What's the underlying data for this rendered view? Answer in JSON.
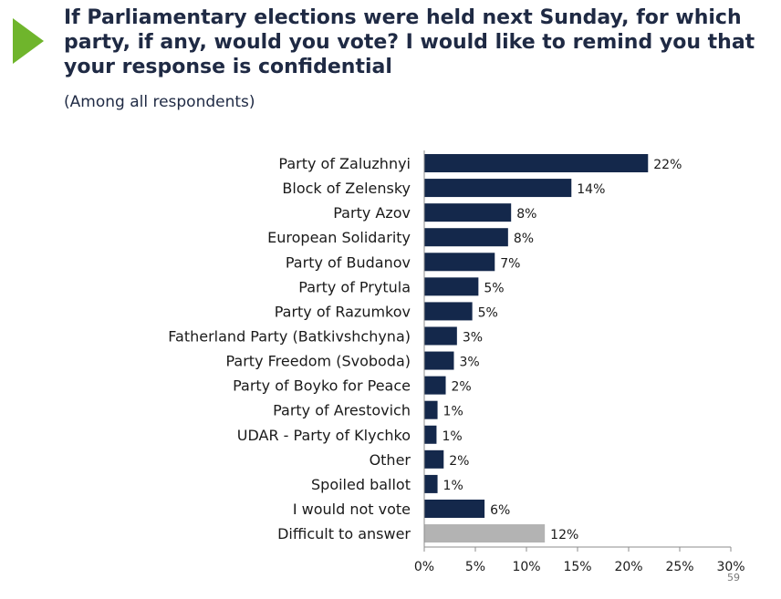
{
  "header": {
    "title": "If Parliamentary elections were held next Sunday, for which party, if any, would you vote? I would like to remind you that your response is confidential",
    "subtitle": "(Among all respondents)"
  },
  "page_number": "59",
  "colors": {
    "bar": "#14284b",
    "bar_highlight": "#b3b3b3",
    "accent_arrow": "#6fb52c"
  },
  "chart_data": {
    "type": "bar",
    "orientation": "horizontal",
    "title": "If Parliamentary elections were held next Sunday, for which party, if any, would you vote? I would like to remind you that your response is confidential",
    "subtitle": "(Among all respondents)",
    "categories": [
      "Party of Zaluzhnyi",
      "Block of Zelensky",
      "Party Azov",
      "European Solidarity",
      "Party of Budanov",
      "Party of Prytula",
      "Party of Razumkov",
      "Fatherland Party (Batkivshchyna)",
      "Party Freedom (Svoboda)",
      "Party of Boyko for Peace",
      "Party of Arestovich",
      "UDAR - Party of Klychko",
      "Other",
      "Spoiled ballot",
      "I would not vote",
      "Difficult to answer"
    ],
    "values": [
      21.9,
      14.4,
      8.5,
      8.2,
      6.9,
      5.3,
      4.7,
      3.2,
      2.9,
      2.1,
      1.3,
      1.2,
      1.9,
      1.3,
      5.9,
      11.8
    ],
    "labels": [
      "22%",
      "14%",
      "8%",
      "8%",
      "7%",
      "5%",
      "5%",
      "3%",
      "3%",
      "2%",
      "1%",
      "1%",
      "2%",
      "1%",
      "6%",
      "12%"
    ],
    "highlight_category": "Difficult to answer",
    "xlim": [
      0,
      30
    ],
    "xticks": [
      0,
      5,
      10,
      15,
      20,
      25,
      30
    ],
    "xtick_labels": [
      "0%",
      "5%",
      "10%",
      "15%",
      "20%",
      "25%",
      "30%"
    ],
    "grid": false
  }
}
